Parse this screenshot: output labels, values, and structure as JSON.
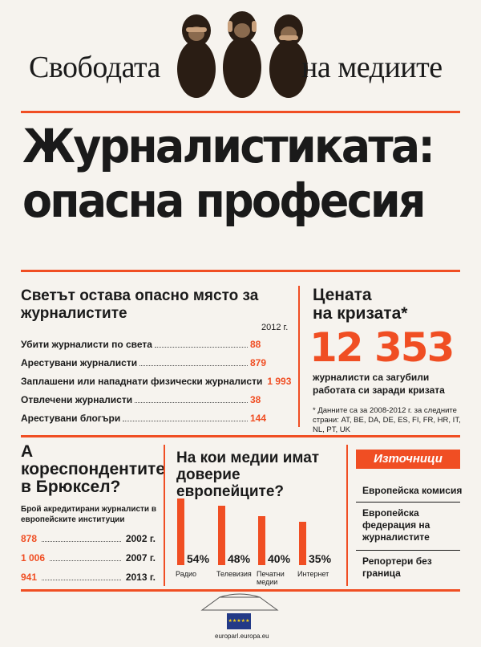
{
  "masthead": {
    "left": "Свободата",
    "right": "на медиите",
    "image": "three-wise-monkeys-icon"
  },
  "headline": {
    "line1": "Журналистиката:",
    "line2": "опасна професия"
  },
  "dangers": {
    "title": "Светът остава опасно място за журналистите",
    "year": "2012 г.",
    "rows": [
      {
        "label": "Убити журналисти по света",
        "value": "88"
      },
      {
        "label": "Арестувани журналисти",
        "value": "879"
      },
      {
        "label": "Заплашени или нападнати физически журналисти",
        "value": "1 993"
      },
      {
        "label": "Отвлечени журналисти",
        "value": "38"
      },
      {
        "label": "Арестувани блогъри",
        "value": "144"
      }
    ]
  },
  "crisis": {
    "title_line1": "Цената",
    "title_line2": "на кризата*",
    "number": "12 353",
    "desc": "журналисти са загубили работата си заради кризата",
    "note": "* Данните са за 2008-2012 г. за следните страни: AT, BE, DA, DE, ES, FI, FR, HR, IT, NL, PT, UK"
  },
  "brussels": {
    "title": "А кореспондентите в Брюксел?",
    "subtitle": "Брой акредитирани журналисти в европейските институции",
    "rows": [
      {
        "value": "878",
        "year": "2002 г."
      },
      {
        "value": "1 006",
        "year": "2007 г."
      },
      {
        "value": "941",
        "year": "2013 г."
      }
    ]
  },
  "trust": {
    "title": "На кои медии имат доверие европейците?"
  },
  "chart_data": {
    "type": "bar",
    "title": "На кои медии имат доверие европейците?",
    "categories": [
      "Радио",
      "Телевизия",
      "Печатни медии",
      "Интернет"
    ],
    "values": [
      54,
      48,
      40,
      35
    ],
    "value_labels": [
      "54%",
      "48%",
      "40%",
      "35%"
    ],
    "ylim": [
      0,
      60
    ],
    "color": "#f04e23"
  },
  "sources": {
    "heading": "Източници",
    "items": [
      "Европейска комисия",
      "Европейска федерация на журналистите",
      "Репортери без граница"
    ]
  },
  "footer": {
    "url": "europarl.europa.eu",
    "logo": "eu-flag-icon",
    "emblem": "parliament-building-icon"
  },
  "colors": {
    "accent": "#f04e23",
    "text": "#1a1a1a",
    "background": "#f6f3ee"
  }
}
